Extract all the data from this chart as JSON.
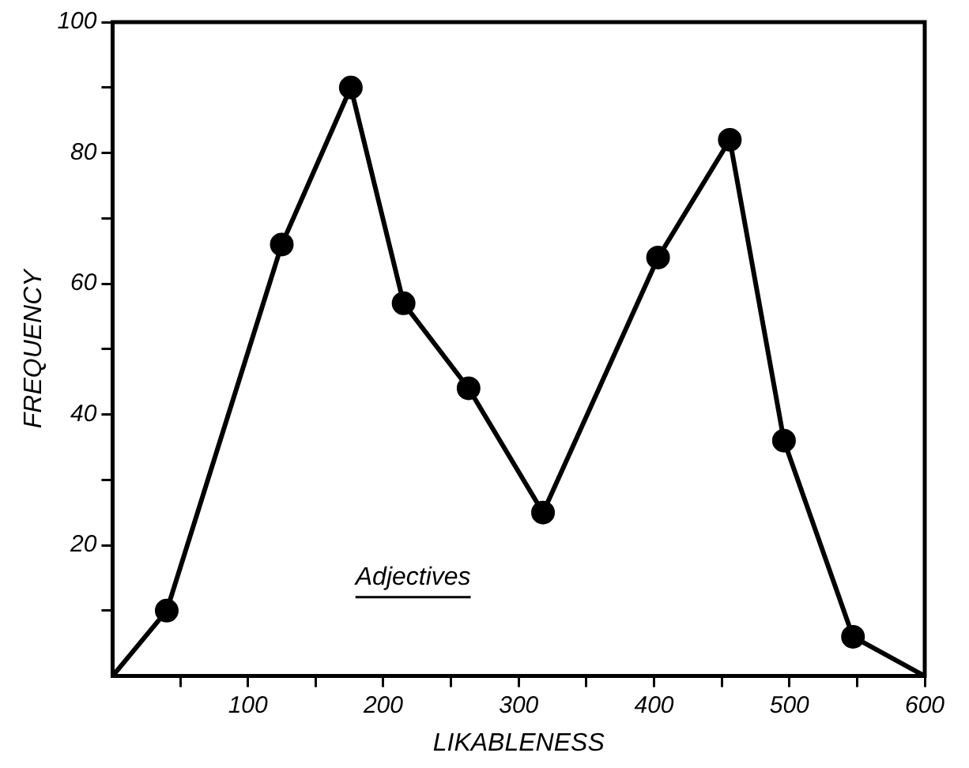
{
  "chart_data": {
    "type": "line",
    "xlabel": "LIKABLENESS",
    "ylabel": "FREQUENCY",
    "annotations": [
      "Adjectives"
    ],
    "series": [
      {
        "marker": "none",
        "color": "#000000",
        "x": [
          0,
          40,
          125,
          176,
          215,
          263,
          318,
          403,
          456,
          496,
          547,
          600
        ],
        "values": [
          0,
          10,
          66,
          90,
          57,
          44,
          25,
          64,
          82,
          36,
          6,
          0
        ]
      },
      {
        "type": "scatter",
        "marker": "circle",
        "color": "#000000",
        "x": [
          40,
          125,
          176,
          215,
          263,
          318,
          403,
          456,
          496,
          547
        ],
        "values": [
          10,
          66,
          90,
          57,
          44,
          25,
          64,
          82,
          36,
          6
        ]
      }
    ],
    "xlim": [
      0,
      600
    ],
    "ylim": [
      0,
      100
    ],
    "xticks": [
      {
        "value": 50,
        "label": null
      },
      100,
      {
        "value": 150,
        "label": null
      },
      200,
      {
        "value": 250,
        "label": null
      },
      300,
      {
        "value": 350,
        "label": null
      },
      400,
      {
        "value": 450,
        "label": null
      },
      500,
      {
        "value": 550,
        "label": null
      },
      600
    ],
    "yticks": [
      {
        "value": 10,
        "label": null
      },
      20,
      {
        "value": 30,
        "label": null
      },
      40,
      {
        "value": 50,
        "label": null
      },
      60,
      {
        "value": 70,
        "label": null
      },
      80,
      {
        "value": 90,
        "label": null
      },
      100
    ],
    "grid": false,
    "legend": false,
    "line_style": "solid"
  }
}
